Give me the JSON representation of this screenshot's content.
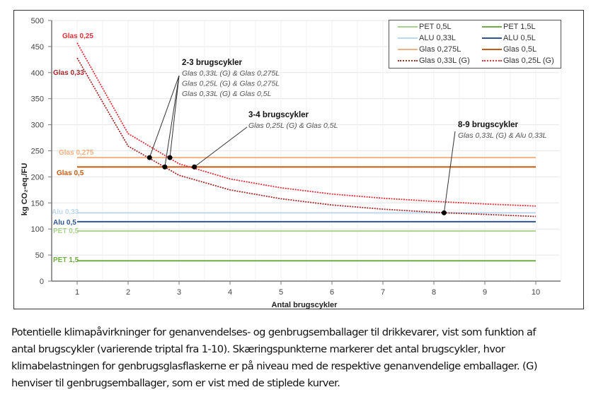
{
  "chart_data": {
    "type": "line",
    "xlabel": "Antal brugscykler",
    "ylabel": "kg CO₂-eq./FU",
    "x": [
      1,
      2,
      3,
      4,
      5,
      6,
      7,
      8,
      9,
      10
    ],
    "xlim": [
      0.5,
      10.5
    ],
    "ylim": [
      0,
      500
    ],
    "xticks": [
      1,
      2,
      3,
      4,
      5,
      6,
      7,
      8,
      9,
      10
    ],
    "yticks": [
      0,
      50,
      100,
      150,
      200,
      250,
      300,
      350,
      400,
      450,
      500
    ],
    "grid": true,
    "legend_position": "top-right",
    "series": [
      {
        "name": "PET 0,5L",
        "label": "PET 0,5",
        "color": "#a9d18e",
        "dash": false,
        "values": [
          96,
          96,
          96,
          96,
          96,
          96,
          96,
          96,
          96,
          96
        ]
      },
      {
        "name": "PET 1,5L",
        "label": "PET 1,5",
        "color": "#70ad47",
        "dash": false,
        "values": [
          39,
          39,
          39,
          39,
          39,
          39,
          39,
          39,
          39,
          39
        ]
      },
      {
        "name": "ALU 0,33L",
        "label": "Alu 0,33",
        "color": "#bdd7ee",
        "dash": false,
        "values": [
          131,
          131,
          131,
          131,
          131,
          131,
          131,
          131,
          131,
          131
        ]
      },
      {
        "name": "ALU 0,5L",
        "label": "Alu 0,5",
        "color": "#2f5597",
        "dash": false,
        "values": [
          114,
          114,
          114,
          114,
          114,
          114,
          114,
          114,
          114,
          114
        ]
      },
      {
        "name": "Glas 0,275L",
        "label": "Glas 0,275",
        "color": "#f4b183",
        "dash": false,
        "values": [
          237,
          237,
          237,
          237,
          237,
          237,
          237,
          237,
          237,
          237
        ]
      },
      {
        "name": "Glas 0,5L",
        "label": "Glas 0,5",
        "color": "#c55a11",
        "dash": false,
        "values": [
          219,
          219,
          219,
          219,
          219,
          219,
          219,
          219,
          219,
          219
        ]
      },
      {
        "name": "Glas 0,33L (G)",
        "label": "Glas 0,33",
        "color": "#a52a2a",
        "dash": true,
        "values": [
          428,
          259,
          203,
          175,
          158,
          146,
          138,
          132,
          128,
          124
        ]
      },
      {
        "name": "Glas 0,25L (G)",
        "label": "Glas 0,25",
        "color": "#e0303a",
        "dash": true,
        "values": [
          457,
          283,
          225,
          196,
          179,
          167,
          159,
          153,
          148,
          144
        ]
      }
    ],
    "annotations": [
      {
        "title": "2-3 brugscykler",
        "lines": [
          "Glas 0,33L (G) & Glas 0,275L",
          "Glas 0,25L (G) & Glas 0,275L",
          "Glas 0,33L (G) & Glas 0,5L"
        ],
        "points": [
          [
            2.42,
            237
          ],
          [
            2.82,
            237
          ],
          [
            2.72,
            219
          ]
        ]
      },
      {
        "title": "3-4 brugscykler",
        "lines": [
          "Glas 0,25L (G) & Glas 0,5L"
        ],
        "points": [
          [
            3.3,
            219
          ]
        ]
      },
      {
        "title": "8-9 brugscykler",
        "lines": [
          "Glas 0,33L (G) & Alu 0,33L"
        ],
        "points": [
          [
            8.2,
            131
          ]
        ]
      }
    ]
  },
  "caption": [
    "Potentielle klimapåvirkninger for genanvendelses- og genbrugsemballager til drikkevarer, vist som funktion af",
    "antal brugscykler (varierende triptal fra 1-10). Skæringspunkterne markerer det antal brugscykler, hvor",
    "klimabelastningen for genbrugsglasflaskerne er på niveau med de respektive genanvendelige emballager. (G)",
    "henviser til genbrugsemballager, som er vist med de stiplede kurver."
  ]
}
